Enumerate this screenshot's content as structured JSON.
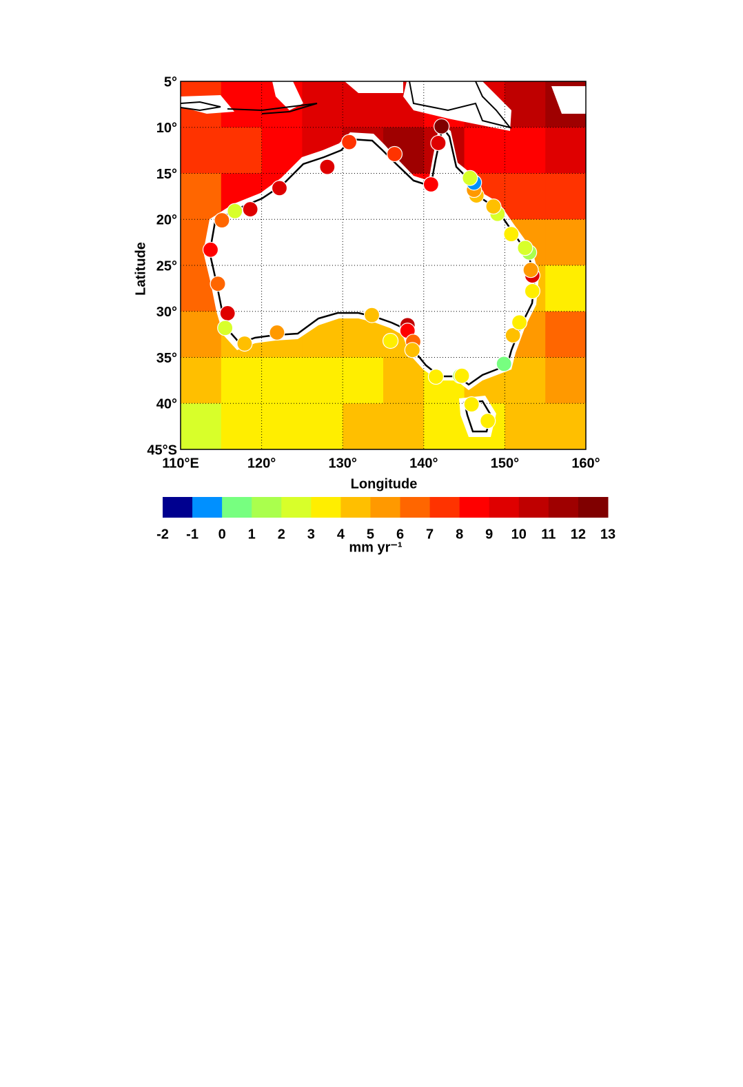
{
  "chart_data": {
    "type": "map",
    "xlabel": "Longitude",
    "ylabel": "Latitude",
    "xlim": [
      110,
      160
    ],
    "ylim": [
      -45,
      -5
    ],
    "xticks": [
      {
        "value": 110,
        "label": "110°E"
      },
      {
        "value": 120,
        "label": "120°"
      },
      {
        "value": 130,
        "label": "130°"
      },
      {
        "value": 140,
        "label": "140°"
      },
      {
        "value": 150,
        "label": "150°"
      },
      {
        "value": 160,
        "label": "160°"
      }
    ],
    "yticks": [
      {
        "value": -5,
        "label": "5°"
      },
      {
        "value": -10,
        "label": "10°"
      },
      {
        "value": -15,
        "label": "15°"
      },
      {
        "value": -20,
        "label": "20°"
      },
      {
        "value": -25,
        "label": "25°"
      },
      {
        "value": -30,
        "label": "30°"
      },
      {
        "value": -35,
        "label": "35°"
      },
      {
        "value": -40,
        "label": "40°"
      },
      {
        "value": -45,
        "label": "45°S"
      }
    ],
    "grid": true,
    "colorbar": {
      "ticks": [
        -2,
        -1,
        0,
        1,
        2,
        3,
        4,
        5,
        6,
        7,
        8,
        9,
        10,
        11,
        12,
        13
      ],
      "colors": [
        "#00008f",
        "#0090ff",
        "#77ff80",
        "#aaff4d",
        "#d8ff2a",
        "#ffee00",
        "#ffbf00",
        "#ff9900",
        "#ff6600",
        "#ff3300",
        "#ff0000",
        "#df0000",
        "#bf0000",
        "#9f0000",
        "#800000"
      ],
      "label": "mm yr⁻¹"
    },
    "field": {
      "lon_edges": [
        110,
        115,
        120,
        125,
        130,
        135,
        140,
        145,
        150,
        155,
        160
      ],
      "lat_edges": [
        -5,
        -10,
        -15,
        -20,
        -25,
        -30,
        -35,
        -40,
        -45
      ],
      "values": [
        [
          7.5,
          8.5,
          8.5,
          9.5,
          9.5,
          9.5,
          8.5,
          9.5,
          10.5,
          11.5
        ],
        [
          7.5,
          7.5,
          8.5,
          9.5,
          10.5,
          11.5,
          10.5,
          8.5,
          8.5,
          9.5
        ],
        [
          6.5,
          8.5,
          8.5,
          8.5,
          8.5,
          8.5,
          8.5,
          7.5,
          7.5,
          7.5
        ],
        [
          6.5,
          7.5,
          7.5,
          7.5,
          7.5,
          7.5,
          7.5,
          5.5,
          5.5,
          5.5
        ],
        [
          6.5,
          6.5,
          6.5,
          6.5,
          6.5,
          6.5,
          5.5,
          4.5,
          4.5,
          3.5
        ],
        [
          5.5,
          4.5,
          4.5,
          4.5,
          4.5,
          4.5,
          4.5,
          4.5,
          5.5,
          6.5
        ],
        [
          4.5,
          3.5,
          3.5,
          3.5,
          3.5,
          4.5,
          3.5,
          4.5,
          4.5,
          5.5
        ],
        [
          2.5,
          3.5,
          3.5,
          3.5,
          4.5,
          4.5,
          3.5,
          3.5,
          4.5,
          4.5
        ]
      ]
    },
    "stations": {
      "lon": [
        142.2,
        141.8,
        140.9,
        136.4,
        130.8,
        128.1,
        122.2,
        118.6,
        116.7,
        115.1,
        113.7,
        114.6,
        115.8,
        115.5,
        117.9,
        121.9,
        133.6,
        138.0,
        138.0,
        135.9,
        138.7,
        138.6,
        141.5,
        144.5,
        144.7,
        145.9,
        147.9,
        149.9,
        151.0,
        151.8,
        153.4,
        153.4,
        153.2,
        153.0,
        152.5,
        150.8,
        149.1,
        148.6,
        146.5,
        146.2,
        146.2,
        145.7
      ],
      "lat": [
        -9.9,
        -11.7,
        -16.2,
        -12.9,
        -11.6,
        -14.3,
        -16.6,
        -18.9,
        -19.1,
        -20.1,
        -23.3,
        -27.0,
        -30.2,
        -31.8,
        -33.5,
        -32.3,
        -30.4,
        -31.5,
        -32.1,
        -33.2,
        -33.3,
        -34.2,
        -37.1,
        -37.0,
        -37.0,
        -40.1,
        -41.9,
        -35.7,
        -32.6,
        -31.2,
        -27.8,
        -26.1,
        -25.5,
        -23.6,
        -23.1,
        -21.6,
        -19.4,
        -18.6,
        -17.4,
        -16.8,
        -16.0,
        -15.5
      ],
      "values": [
        12.5,
        9.5,
        8.5,
        7.5,
        7.5,
        9.5,
        9.5,
        9.5,
        2.5,
        6.5,
        8.5,
        6.5,
        9.5,
        2.5,
        4.5,
        5.5,
        4.5,
        10.5,
        8.5,
        3.5,
        6.5,
        4.5,
        3.5,
        1.5,
        3.5,
        3.5,
        3.5,
        0.5,
        4.5,
        3.5,
        3.5,
        9.5,
        5.5,
        1.5,
        2.5,
        3.5,
        2.5,
        4.5,
        4.5,
        5.5,
        -0.5,
        2.5
      ]
    }
  }
}
